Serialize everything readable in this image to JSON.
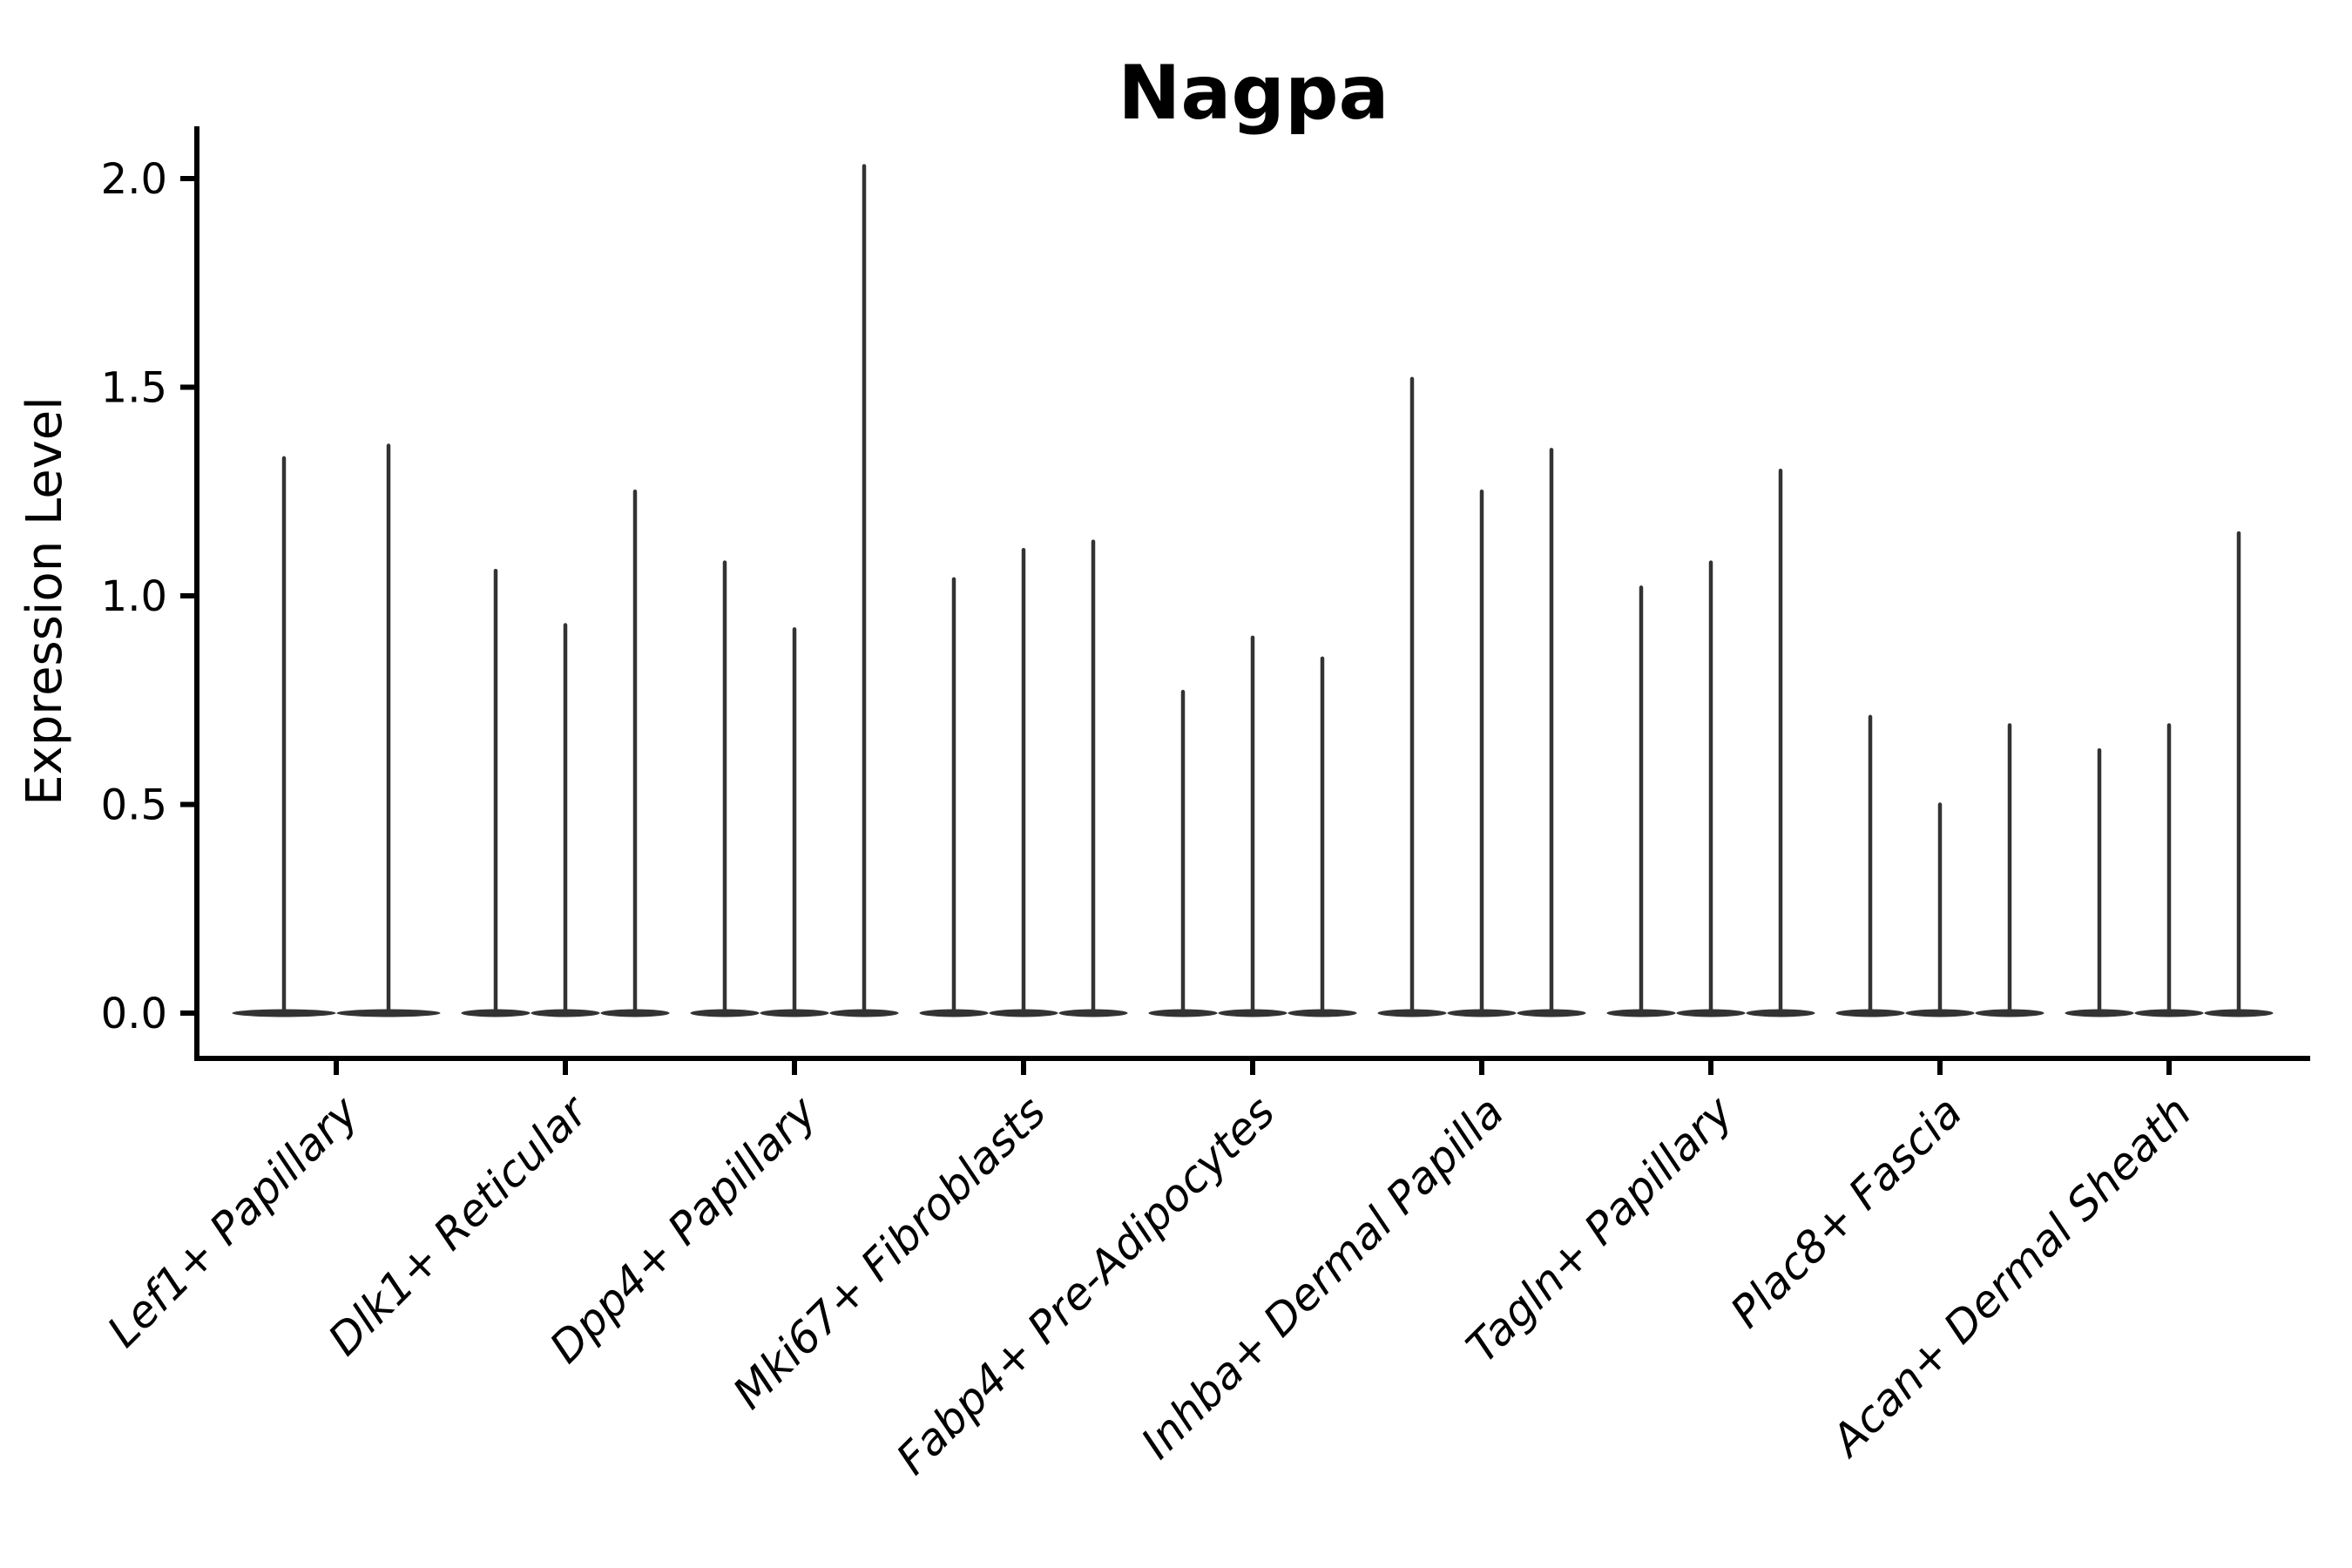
{
  "chart_data": {
    "type": "violin",
    "title": "Nagpa",
    "xlabel": "",
    "ylabel": "Expression Level",
    "yticks": [
      0.0,
      0.5,
      1.0,
      1.5,
      2.0
    ],
    "ytick_labels": [
      "0.0",
      "0.5",
      "1.0",
      "1.5",
      "2.0"
    ],
    "ylim": [
      0.0,
      2.15
    ],
    "grid": false,
    "legend": "none",
    "violin_style": "thin spike violins: flat base at 0 with narrow vertical tail up to max expression",
    "categories": [
      "Lef1+ Papillary",
      "Dlk1+ Reticular",
      "Dpp4+ Papillary",
      "Mki67+ Fibroblasts",
      "Fabp4+ Pre-Adipocytes",
      "Inhba+ Dermal Papilla",
      "Tagln+ Papillary",
      "Plac8+ Fascia",
      "Acan+ Dermal Sheath"
    ],
    "series": [
      {
        "category": "Lef1+ Papillary",
        "violin_max_values": [
          1.33,
          1.36
        ]
      },
      {
        "category": "Dlk1+ Reticular",
        "violin_max_values": [
          1.06,
          0.93,
          1.25
        ]
      },
      {
        "category": "Dpp4+ Papillary",
        "violin_max_values": [
          1.08,
          0.92,
          2.03
        ]
      },
      {
        "category": "Mki67+ Fibroblasts",
        "violin_max_values": [
          1.04,
          1.11,
          1.13
        ]
      },
      {
        "category": "Fabp4+ Pre-Adipocytes",
        "violin_max_values": [
          0.77,
          0.9,
          0.85
        ]
      },
      {
        "category": "Inhba+ Dermal Papilla",
        "violin_max_values": [
          1.52,
          1.25,
          1.35
        ]
      },
      {
        "category": "Tagln+ Papillary",
        "violin_max_values": [
          1.02,
          1.08,
          1.3
        ]
      },
      {
        "category": "Plac8+ Fascia",
        "violin_max_values": [
          0.71,
          0.5,
          0.69
        ]
      },
      {
        "category": "Acan+ Dermal Sheath",
        "violin_max_values": [
          0.63,
          0.69,
          1.15
        ]
      }
    ],
    "colors": {
      "violin_stroke": "#333333",
      "axis": "#000000",
      "background": "#ffffff"
    }
  }
}
